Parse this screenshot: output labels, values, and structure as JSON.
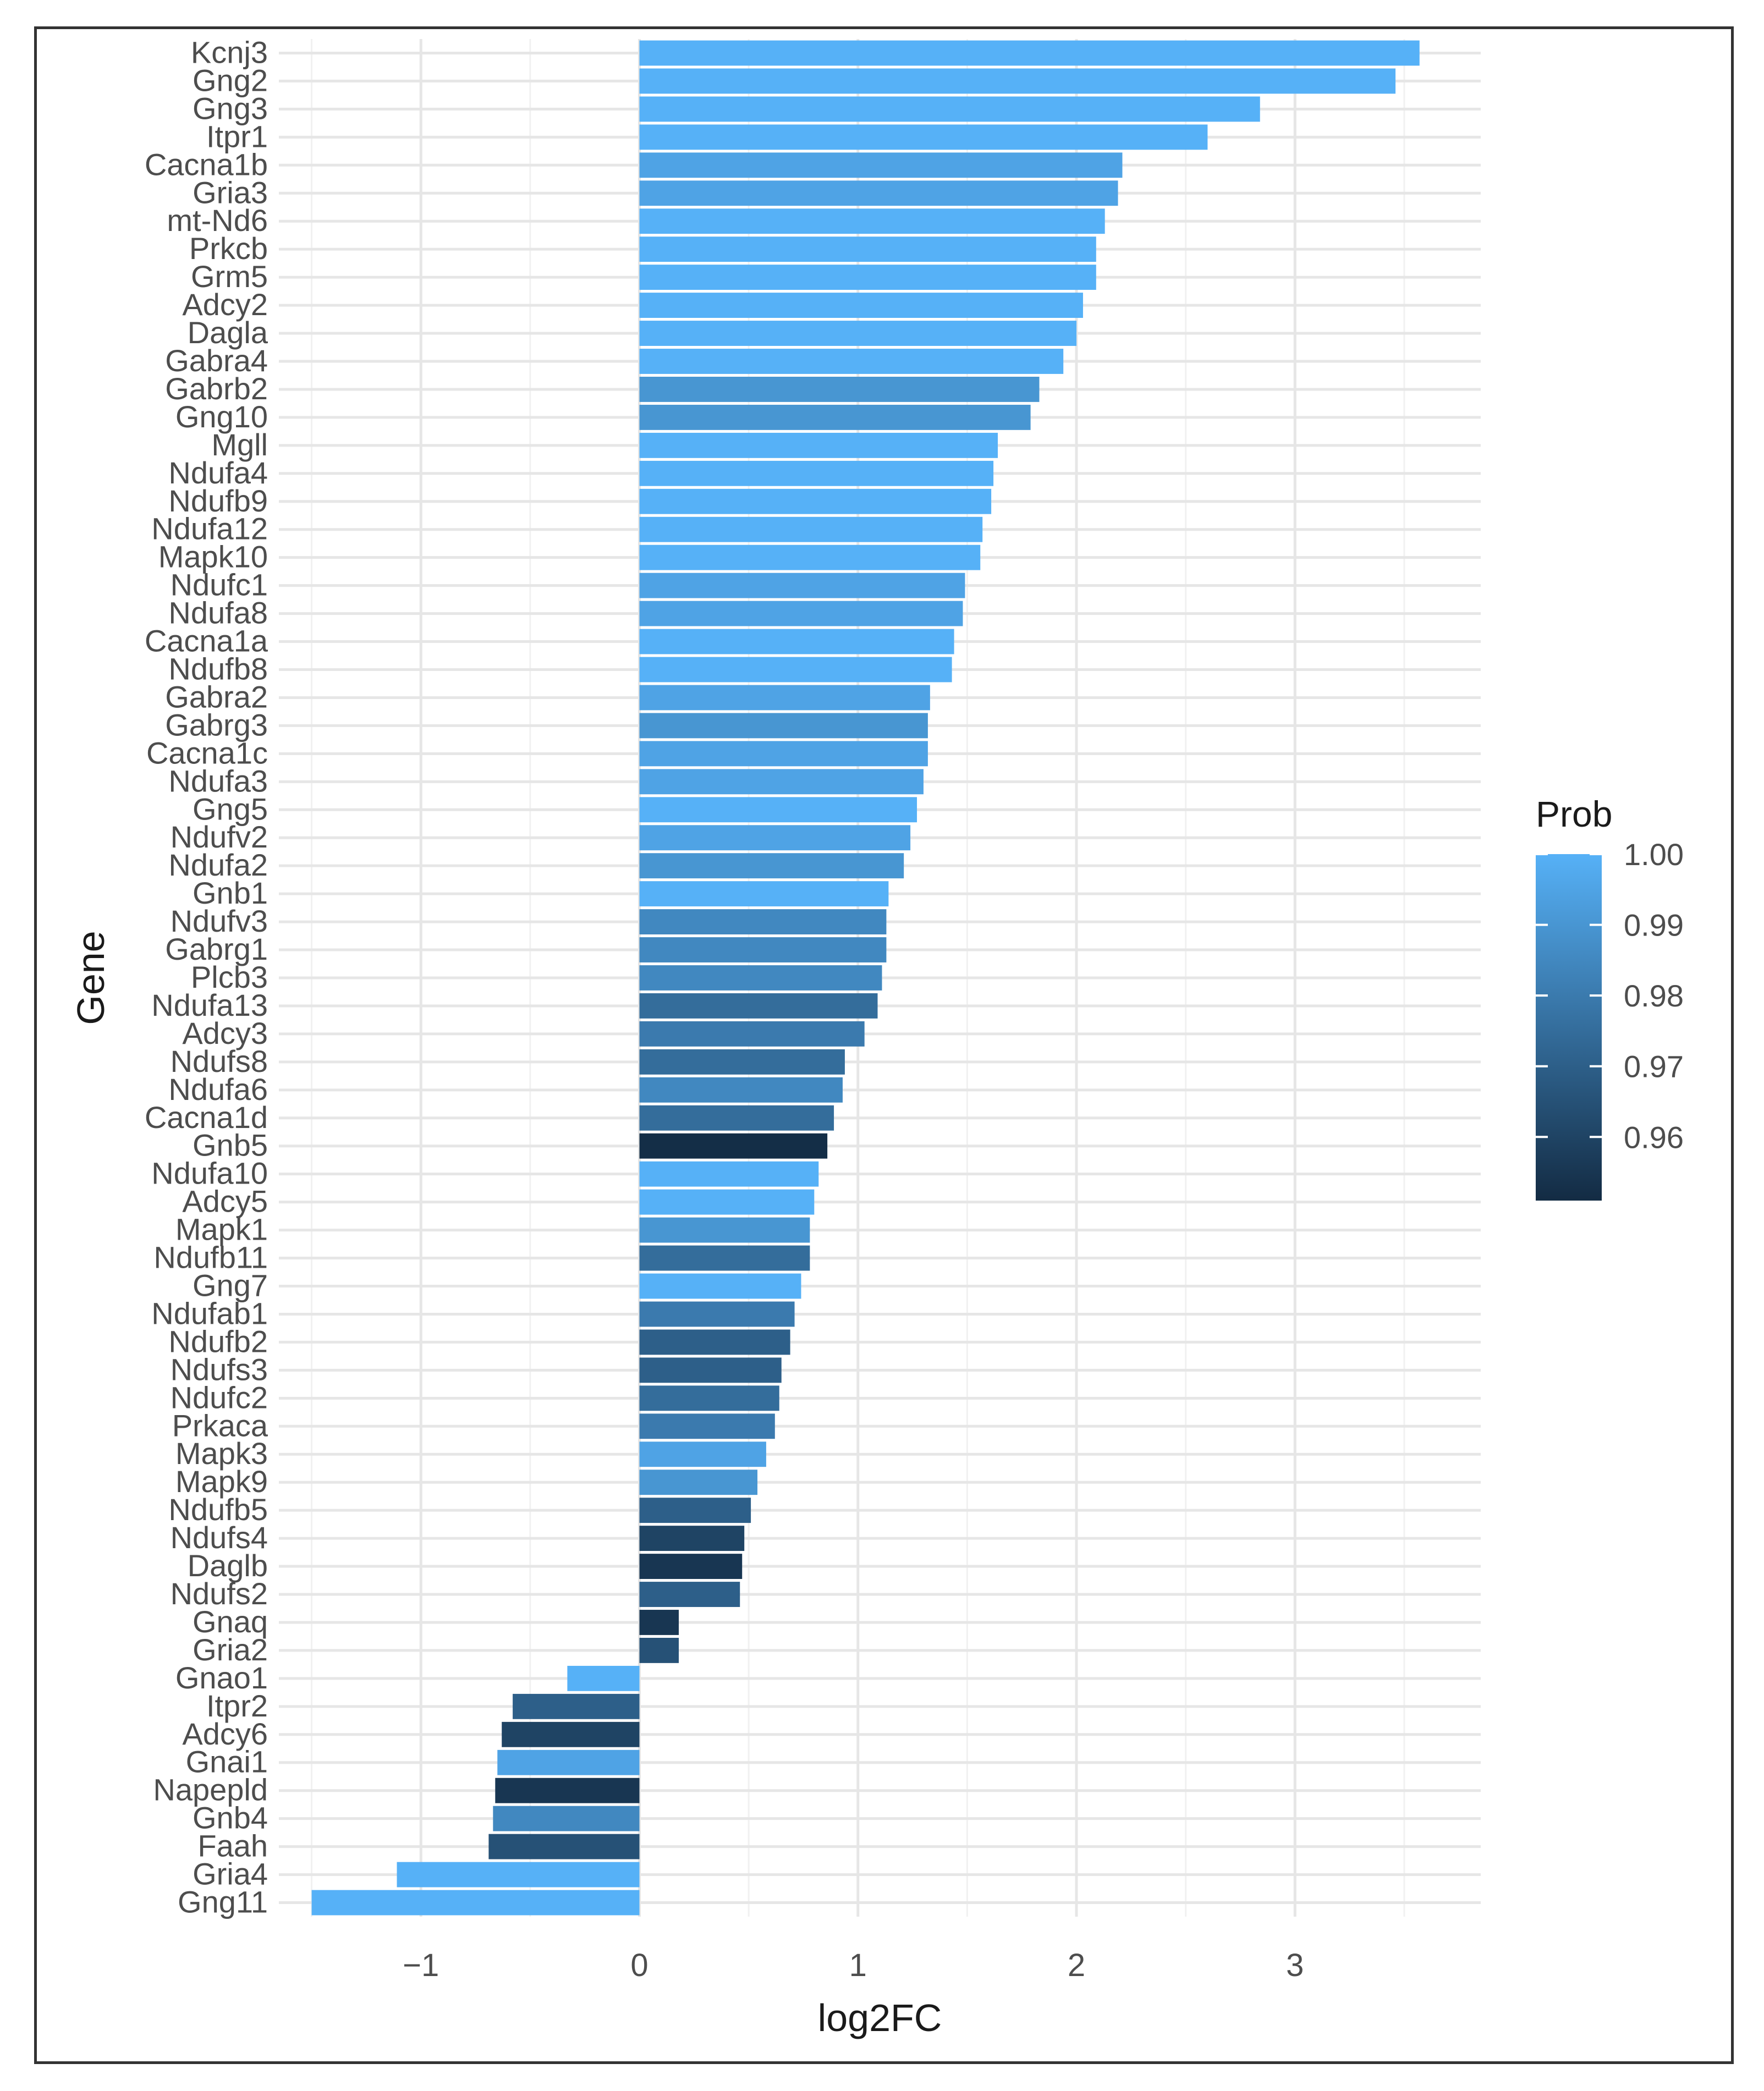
{
  "chart_data": {
    "type": "bar",
    "orientation": "horizontal",
    "title": "",
    "xlabel": "log2FC",
    "ylabel": "Gene",
    "xlim": [
      -1.65,
      3.85
    ],
    "xticks": [
      -1,
      0,
      1,
      2,
      3
    ],
    "xtick_labels": [
      "−1",
      "0",
      "1",
      "2",
      "3"
    ],
    "grid": true,
    "legend": {
      "title": "Prob",
      "position": "right",
      "ticks": [
        1.0,
        0.99,
        0.98,
        0.97,
        0.96
      ],
      "tick_labels": [
        "1.00",
        "0.99",
        "0.98",
        "0.97",
        "0.96"
      ],
      "range": [
        0.951,
        1.0
      ],
      "color_low": "#132b43",
      "color_high": "#56b1f7"
    },
    "categories": [
      "Kcnj3",
      "Gng2",
      "Gng3",
      "Itpr1",
      "Cacna1b",
      "Gria3",
      "mt-Nd6",
      "Prkcb",
      "Grm5",
      "Adcy2",
      "Dagla",
      "Gabra4",
      "Gabrb2",
      "Gng10",
      "Mgll",
      "Ndufa4",
      "Ndufb9",
      "Ndufa12",
      "Mapk10",
      "Ndufc1",
      "Ndufa8",
      "Cacna1a",
      "Ndufb8",
      "Gabra2",
      "Gabrg3",
      "Cacna1c",
      "Ndufa3",
      "Gng5",
      "Ndufv2",
      "Ndufa2",
      "Gnb1",
      "Ndufv3",
      "Gabrg1",
      "Plcb3",
      "Ndufa13",
      "Adcy3",
      "Ndufs8",
      "Ndufa6",
      "Cacna1d",
      "Gnb5",
      "Ndufa10",
      "Adcy5",
      "Mapk1",
      "Ndufb11",
      "Gng7",
      "Ndufab1",
      "Ndufb2",
      "Ndufs3",
      "Ndufc2",
      "Prkaca",
      "Mapk3",
      "Mapk9",
      "Ndufb5",
      "Ndufs4",
      "Daglb",
      "Ndufs2",
      "Gnaq",
      "Gria2",
      "Gnao1",
      "Itpr2",
      "Adcy6",
      "Gnai1",
      "Napepld",
      "Gnb4",
      "Faah",
      "Gria4",
      "Gng11"
    ],
    "values": [
      3.57,
      3.46,
      2.84,
      2.6,
      2.21,
      2.19,
      2.13,
      2.09,
      2.09,
      2.03,
      2.0,
      1.94,
      1.83,
      1.79,
      1.64,
      1.62,
      1.61,
      1.57,
      1.56,
      1.49,
      1.48,
      1.44,
      1.43,
      1.33,
      1.32,
      1.32,
      1.3,
      1.27,
      1.24,
      1.21,
      1.14,
      1.13,
      1.13,
      1.11,
      1.09,
      1.03,
      0.94,
      0.93,
      0.89,
      0.86,
      0.82,
      0.8,
      0.78,
      0.78,
      0.74,
      0.71,
      0.69,
      0.65,
      0.64,
      0.62,
      0.58,
      0.54,
      0.51,
      0.48,
      0.47,
      0.46,
      0.18,
      0.18,
      -0.33,
      -0.58,
      -0.63,
      -0.65,
      -0.66,
      -0.67,
      -0.69,
      -1.11,
      -1.5
    ],
    "prob": [
      1.0,
      1.0,
      1.0,
      1.0,
      0.995,
      0.995,
      1.0,
      1.0,
      1.0,
      1.0,
      1.0,
      1.0,
      0.99,
      0.99,
      1.0,
      1.0,
      1.0,
      1.0,
      1.0,
      0.995,
      0.995,
      1.0,
      1.0,
      0.995,
      0.99,
      0.995,
      0.995,
      1.0,
      0.995,
      0.99,
      1.0,
      0.985,
      0.985,
      0.985,
      0.975,
      0.98,
      0.975,
      0.985,
      0.975,
      0.952,
      1.0,
      1.0,
      0.99,
      0.975,
      1.0,
      0.98,
      0.97,
      0.97,
      0.975,
      0.98,
      0.995,
      0.99,
      0.97,
      0.96,
      0.955,
      0.97,
      0.955,
      0.965,
      1.0,
      0.97,
      0.96,
      0.995,
      0.955,
      0.985,
      0.965,
      1.0,
      1.0
    ]
  }
}
